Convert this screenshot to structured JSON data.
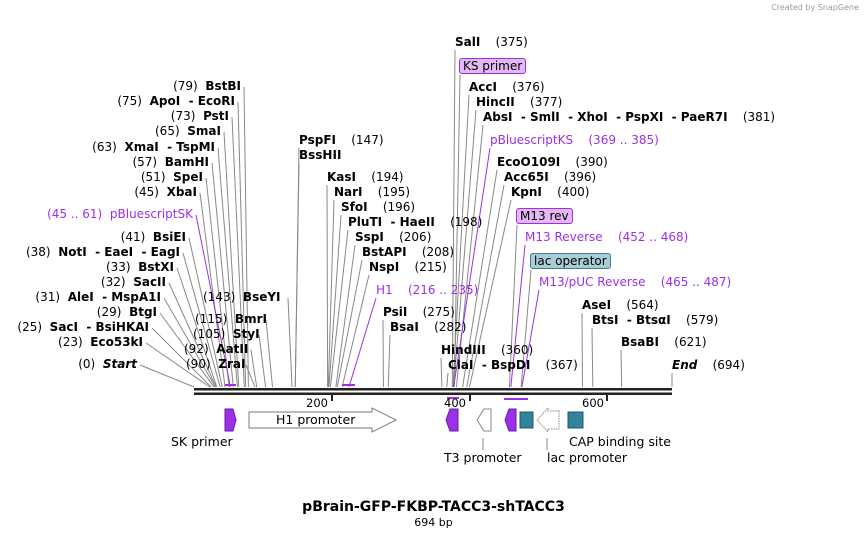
{
  "credit": "Created by SnapGene",
  "title": "pBrain-GFP-FKBP-TACC3-shTACC3",
  "length_label": "694 bp",
  "length_bp": 694,
  "ticks": [
    "200",
    "400",
    "600"
  ],
  "left_sites": [
    {
      "pos": "(79)",
      "name": "BstBI",
      "bp": 79
    },
    {
      "pos": "(75)",
      "name": "ApoI  - EcoRI",
      "bp": 75
    },
    {
      "pos": "(73)",
      "name": "PstI",
      "bp": 73
    },
    {
      "pos": "(65)",
      "name": "SmaI",
      "bp": 65
    },
    {
      "pos": "(63)",
      "name": "XmaI  - TspMI",
      "bp": 63
    },
    {
      "pos": "(57)",
      "name": "BamHI",
      "bp": 57
    },
    {
      "pos": "(51)",
      "name": "SpeI",
      "bp": 51
    },
    {
      "pos": "(45)",
      "name": "XbaI",
      "bp": 45
    },
    {
      "pos": "(45 .. 61)",
      "name": "pBluescriptSK",
      "bp": 53,
      "primer": true
    },
    {
      "pos": "(41)",
      "name": "BsiEI",
      "bp": 41
    },
    {
      "pos": "(38)",
      "name": "NotI  - EaeI  - EagI",
      "bp": 38
    },
    {
      "pos": "(33)",
      "name": "BstXI",
      "bp": 33
    },
    {
      "pos": "(32)",
      "name": "SacII",
      "bp": 32
    },
    {
      "pos": "(31)",
      "name": "AleI  - MspA1I",
      "bp": 31
    },
    {
      "pos": "(29)",
      "name": "BtgI",
      "bp": 29
    },
    {
      "pos": "(25)",
      "name": "SacI  - BsiHKAI",
      "bp": 25
    },
    {
      "pos": "(23)",
      "name": "Eco53kI",
      "bp": 23
    },
    {
      "pos": "(0)",
      "name": "Start",
      "bp": 0,
      "italic": true
    }
  ],
  "mid_sites": [
    {
      "pos": "(143)",
      "name": "BseYI",
      "bp": 143
    },
    {
      "pos": "(115)",
      "name": "BmrI",
      "bp": 115
    },
    {
      "pos": "(105)",
      "name": "StyI",
      "bp": 105
    },
    {
      "pos": "(92)",
      "name": "AatII",
      "bp": 92
    },
    {
      "pos": "(90)",
      "name": "ZraI",
      "bp": 90
    }
  ],
  "right_sites": [
    {
      "name": "PspFI",
      "pos": "(147)",
      "bp": 147
    },
    {
      "name": "BssHII",
      "pos": "",
      "bp": 147
    },
    {
      "name": "KasI",
      "pos": "(194)",
      "bp": 194
    },
    {
      "name": "NarI",
      "pos": "(195)",
      "bp": 195
    },
    {
      "name": "SfoI",
      "pos": "(196)",
      "bp": 196
    },
    {
      "name": "PluTI  - HaeII",
      "pos": "(198)",
      "bp": 198
    },
    {
      "name": "SspI",
      "pos": "(206)",
      "bp": 206
    },
    {
      "name": "BstAPI",
      "pos": "(208)",
      "bp": 208
    },
    {
      "name": "NspI",
      "pos": "(215)",
      "bp": 215
    },
    {
      "name": "H1",
      "pos": "(216 .. 235)",
      "bp": 225,
      "primer": true
    },
    {
      "name": "PsiI",
      "pos": "(275)",
      "bp": 275
    },
    {
      "name": "BsaI",
      "pos": "(282)",
      "bp": 282
    },
    {
      "name": "HindIII",
      "pos": "(360)",
      "bp": 360
    },
    {
      "name": "ClaI  - BspDI",
      "pos": "(367)",
      "bp": 367
    },
    {
      "name": "SalI",
      "pos": "(375)",
      "bp": 375
    },
    {
      "name": "KS primer",
      "pos": "",
      "bp": 378,
      "box": "purple"
    },
    {
      "name": "AccI",
      "pos": "(376)",
      "bp": 376
    },
    {
      "name": "HincII",
      "pos": "(377)",
      "bp": 377
    },
    {
      "name": "AbsI  - SmlI  - XhoI  - PspXI  - PaeR7I",
      "pos": "(381)",
      "bp": 381
    },
    {
      "name": "pBluescriptKS",
      "pos": "(369 .. 385)",
      "bp": 377,
      "primer": true
    },
    {
      "name": "EcoO109I",
      "pos": "(390)",
      "bp": 390
    },
    {
      "name": "Acc65I",
      "pos": "(396)",
      "bp": 396
    },
    {
      "name": "KpnI",
      "pos": "(400)",
      "bp": 400
    },
    {
      "name": "M13 rev",
      "pos": "",
      "bp": 458,
      "box": "purple"
    },
    {
      "name": "M13 Reverse",
      "pos": "(452 .. 468)",
      "bp": 460,
      "primer": true
    },
    {
      "name": "lac operator",
      "pos": "",
      "bp": 475,
      "box": "teal"
    },
    {
      "name": "M13/pUC Reverse",
      "pos": "(465 .. 487)",
      "bp": 476,
      "primer": true
    },
    {
      "name": "AseI",
      "pos": "(564)",
      "bp": 564
    },
    {
      "name": "BtsI  - BtsαI",
      "pos": "(579)",
      "bp": 579
    },
    {
      "name": "BsaBI",
      "pos": "(621)",
      "bp": 621
    },
    {
      "name": "End",
      "pos": "(694)",
      "bp": 694,
      "italic": true
    }
  ],
  "features": [
    {
      "label": "SK primer",
      "type": "primer",
      "color": "#9b30e8"
    },
    {
      "label": "H1 promoter",
      "type": "promoter",
      "color": "#ffffff"
    },
    {
      "label": "",
      "type": "primer",
      "color": "#9b30e8"
    },
    {
      "label": "T3 promoter",
      "type": "promoter",
      "color": "#ffffff"
    },
    {
      "label": "",
      "type": "primer",
      "color": "#9b30e8"
    },
    {
      "label": "",
      "type": "protein_bind",
      "color": "#31849b"
    },
    {
      "label": "lac promoter",
      "type": "promoter",
      "color": "#ffffff"
    },
    {
      "label": "CAP binding site",
      "type": "protein_bind",
      "color": "#31849b"
    }
  ],
  "colors": {
    "primer": "#9b30e8",
    "teal": "#31849b",
    "line": "#888888"
  }
}
